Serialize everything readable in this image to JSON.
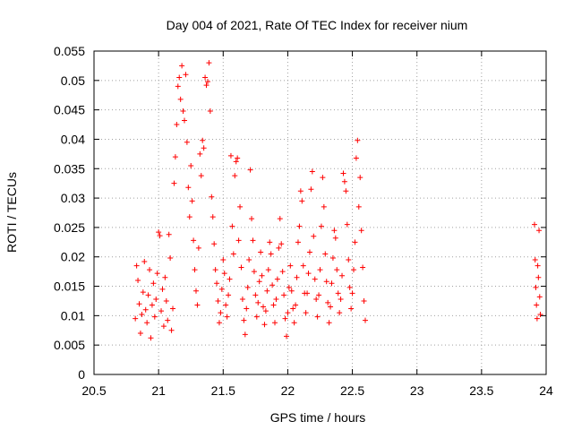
{
  "chart_data": {
    "type": "scatter",
    "title": "Day 004 of 2021, Rate Of TEC Index for receiver nium",
    "xlabel": "GPS time / hours",
    "ylabel": "ROTI / TECUs",
    "xlim": [
      20.5,
      24
    ],
    "ylim": [
      0,
      0.055
    ],
    "xticks": [
      20.5,
      21,
      21.5,
      22,
      22.5,
      23,
      23.5,
      24
    ],
    "xtick_labels": [
      "20.5",
      "21",
      "21.5",
      "22",
      "22.5",
      "23",
      "23.5",
      "24"
    ],
    "yticks": [
      0,
      0.005,
      0.01,
      0.015,
      0.02,
      0.025,
      0.03,
      0.035,
      0.04,
      0.045,
      0.05,
      0.055
    ],
    "ytick_labels": [
      "0",
      "0.005",
      "0.01",
      "0.015",
      "0.02",
      "0.025",
      "0.03",
      "0.035",
      "0.04",
      "0.045",
      "0.05",
      "0.055"
    ],
    "grid": true,
    "marker": "+",
    "marker_color": "#ff0000",
    "series": [
      {
        "name": "ROTI",
        "points": [
          [
            20.82,
            0.0095
          ],
          [
            20.83,
            0.0185
          ],
          [
            20.84,
            0.016
          ],
          [
            20.85,
            0.012
          ],
          [
            20.86,
            0.007
          ],
          [
            20.87,
            0.0102
          ],
          [
            20.88,
            0.014
          ],
          [
            20.89,
            0.0192
          ],
          [
            20.9,
            0.011
          ],
          [
            20.91,
            0.0088
          ],
          [
            20.92,
            0.0135
          ],
          [
            20.93,
            0.0178
          ],
          [
            20.94,
            0.0062
          ],
          [
            20.95,
            0.0118
          ],
          [
            20.96,
            0.0155
          ],
          [
            20.97,
            0.0098
          ],
          [
            20.98,
            0.0128
          ],
          [
            20.99,
            0.0172
          ],
          [
            21.0,
            0.0242
          ],
          [
            21.01,
            0.0236
          ],
          [
            21.02,
            0.0108
          ],
          [
            21.03,
            0.0145
          ],
          [
            21.04,
            0.0082
          ],
          [
            21.05,
            0.0165
          ],
          [
            21.06,
            0.0125
          ],
          [
            21.07,
            0.0092
          ],
          [
            21.08,
            0.0238
          ],
          [
            21.09,
            0.0198
          ],
          [
            21.1,
            0.0075
          ],
          [
            21.11,
            0.0112
          ],
          [
            21.12,
            0.0325
          ],
          [
            21.13,
            0.037
          ],
          [
            21.14,
            0.0425
          ],
          [
            21.15,
            0.049
          ],
          [
            21.16,
            0.0505
          ],
          [
            21.17,
            0.0468
          ],
          [
            21.18,
            0.0525
          ],
          [
            21.19,
            0.0448
          ],
          [
            21.2,
            0.0432
          ],
          [
            21.21,
            0.051
          ],
          [
            21.22,
            0.0395
          ],
          [
            21.23,
            0.0318
          ],
          [
            21.24,
            0.0268
          ],
          [
            21.25,
            0.0355
          ],
          [
            21.26,
            0.0295
          ],
          [
            21.27,
            0.0228
          ],
          [
            21.28,
            0.0178
          ],
          [
            21.29,
            0.0142
          ],
          [
            21.3,
            0.0118
          ],
          [
            21.31,
            0.0215
          ],
          [
            21.32,
            0.0375
          ],
          [
            21.33,
            0.0338
          ],
          [
            21.34,
            0.0398
          ],
          [
            21.35,
            0.0385
          ],
          [
            21.36,
            0.0505
          ],
          [
            21.37,
            0.0492
          ],
          [
            21.38,
            0.0498
          ],
          [
            21.39,
            0.053
          ],
          [
            21.4,
            0.0448
          ],
          [
            21.41,
            0.0302
          ],
          [
            21.42,
            0.0268
          ],
          [
            21.43,
            0.0222
          ],
          [
            21.44,
            0.0178
          ],
          [
            21.45,
            0.0155
          ],
          [
            21.46,
            0.0125
          ],
          [
            21.47,
            0.0088
          ],
          [
            21.48,
            0.0105
          ],
          [
            21.49,
            0.0145
          ],
          [
            21.5,
            0.0195
          ],
          [
            21.51,
            0.0172
          ],
          [
            21.52,
            0.0118
          ],
          [
            21.53,
            0.0098
          ],
          [
            21.54,
            0.0135
          ],
          [
            21.55,
            0.0162
          ],
          [
            21.56,
            0.0372
          ],
          [
            21.57,
            0.0252
          ],
          [
            21.58,
            0.0205
          ],
          [
            21.59,
            0.0338
          ],
          [
            21.6,
            0.0362
          ],
          [
            21.61,
            0.0368
          ],
          [
            21.62,
            0.0228
          ],
          [
            21.63,
            0.0285
          ],
          [
            21.64,
            0.0182
          ],
          [
            21.65,
            0.0128
          ],
          [
            21.66,
            0.0092
          ],
          [
            21.67,
            0.0068
          ],
          [
            21.68,
            0.0112
          ],
          [
            21.69,
            0.0148
          ],
          [
            21.7,
            0.0195
          ],
          [
            21.71,
            0.0348
          ],
          [
            21.72,
            0.0265
          ],
          [
            21.73,
            0.0228
          ],
          [
            21.74,
            0.0175
          ],
          [
            21.75,
            0.0135
          ],
          [
            21.76,
            0.0098
          ],
          [
            21.77,
            0.0122
          ],
          [
            21.78,
            0.0158
          ],
          [
            21.79,
            0.0208
          ],
          [
            21.8,
            0.0168
          ],
          [
            21.81,
            0.0115
          ],
          [
            21.82,
            0.0085
          ],
          [
            21.83,
            0.0108
          ],
          [
            21.84,
            0.0142
          ],
          [
            21.85,
            0.0178
          ],
          [
            21.86,
            0.0225
          ],
          [
            21.87,
            0.0205
          ],
          [
            21.88,
            0.0152
          ],
          [
            21.89,
            0.0118
          ],
          [
            21.9,
            0.0088
          ],
          [
            21.91,
            0.0128
          ],
          [
            21.92,
            0.0162
          ],
          [
            21.93,
            0.0215
          ],
          [
            21.94,
            0.0265
          ],
          [
            21.95,
            0.0222
          ],
          [
            21.96,
            0.0175
          ],
          [
            21.97,
            0.0135
          ],
          [
            21.98,
            0.0095
          ],
          [
            21.99,
            0.0065
          ],
          [
            22.0,
            0.0105
          ],
          [
            22.01,
            0.0148
          ],
          [
            22.02,
            0.0185
          ],
          [
            22.03,
            0.0142
          ],
          [
            22.04,
            0.0112
          ],
          [
            22.05,
            0.0088
          ],
          [
            22.06,
            0.0118
          ],
          [
            22.07,
            0.0165
          ],
          [
            22.08,
            0.0225
          ],
          [
            22.09,
            0.0252
          ],
          [
            22.1,
            0.0312
          ],
          [
            22.11,
            0.0295
          ],
          [
            22.12,
            0.0185
          ],
          [
            22.13,
            0.0138
          ],
          [
            22.14,
            0.0105
          ],
          [
            22.15,
            0.0138
          ],
          [
            22.16,
            0.0172
          ],
          [
            22.17,
            0.0208
          ],
          [
            22.18,
            0.0315
          ],
          [
            22.19,
            0.0345
          ],
          [
            22.2,
            0.0235
          ],
          [
            22.21,
            0.0162
          ],
          [
            22.22,
            0.0128
          ],
          [
            22.23,
            0.0098
          ],
          [
            22.24,
            0.0135
          ],
          [
            22.25,
            0.0178
          ],
          [
            22.26,
            0.0252
          ],
          [
            22.27,
            0.0335
          ],
          [
            22.28,
            0.0285
          ],
          [
            22.29,
            0.0205
          ],
          [
            22.3,
            0.0158
          ],
          [
            22.31,
            0.0122
          ],
          [
            22.32,
            0.0088
          ],
          [
            22.33,
            0.0115
          ],
          [
            22.34,
            0.0155
          ],
          [
            22.35,
            0.0198
          ],
          [
            22.36,
            0.0245
          ],
          [
            22.37,
            0.0232
          ],
          [
            22.38,
            0.0178
          ],
          [
            22.39,
            0.0138
          ],
          [
            22.4,
            0.0105
          ],
          [
            22.41,
            0.0128
          ],
          [
            22.42,
            0.0168
          ],
          [
            22.43,
            0.0342
          ],
          [
            22.44,
            0.0328
          ],
          [
            22.45,
            0.0312
          ],
          [
            22.46,
            0.0255
          ],
          [
            22.47,
            0.0195
          ],
          [
            22.48,
            0.0148
          ],
          [
            22.49,
            0.0112
          ],
          [
            22.5,
            0.0138
          ],
          [
            22.51,
            0.0178
          ],
          [
            22.52,
            0.0225
          ],
          [
            22.53,
            0.0368
          ],
          [
            22.54,
            0.0398
          ],
          [
            22.55,
            0.0285
          ],
          [
            22.56,
            0.0335
          ],
          [
            22.57,
            0.0245
          ],
          [
            22.58,
            0.0182
          ],
          [
            22.59,
            0.0125
          ],
          [
            22.6,
            0.0092
          ],
          [
            23.91,
            0.0255
          ],
          [
            23.915,
            0.0195
          ],
          [
            23.92,
            0.0148
          ],
          [
            23.925,
            0.0118
          ],
          [
            23.93,
            0.0095
          ],
          [
            23.935,
            0.0185
          ],
          [
            23.94,
            0.0165
          ],
          [
            23.945,
            0.0245
          ],
          [
            23.95,
            0.0132
          ],
          [
            23.955,
            0.0102
          ]
        ]
      }
    ]
  }
}
